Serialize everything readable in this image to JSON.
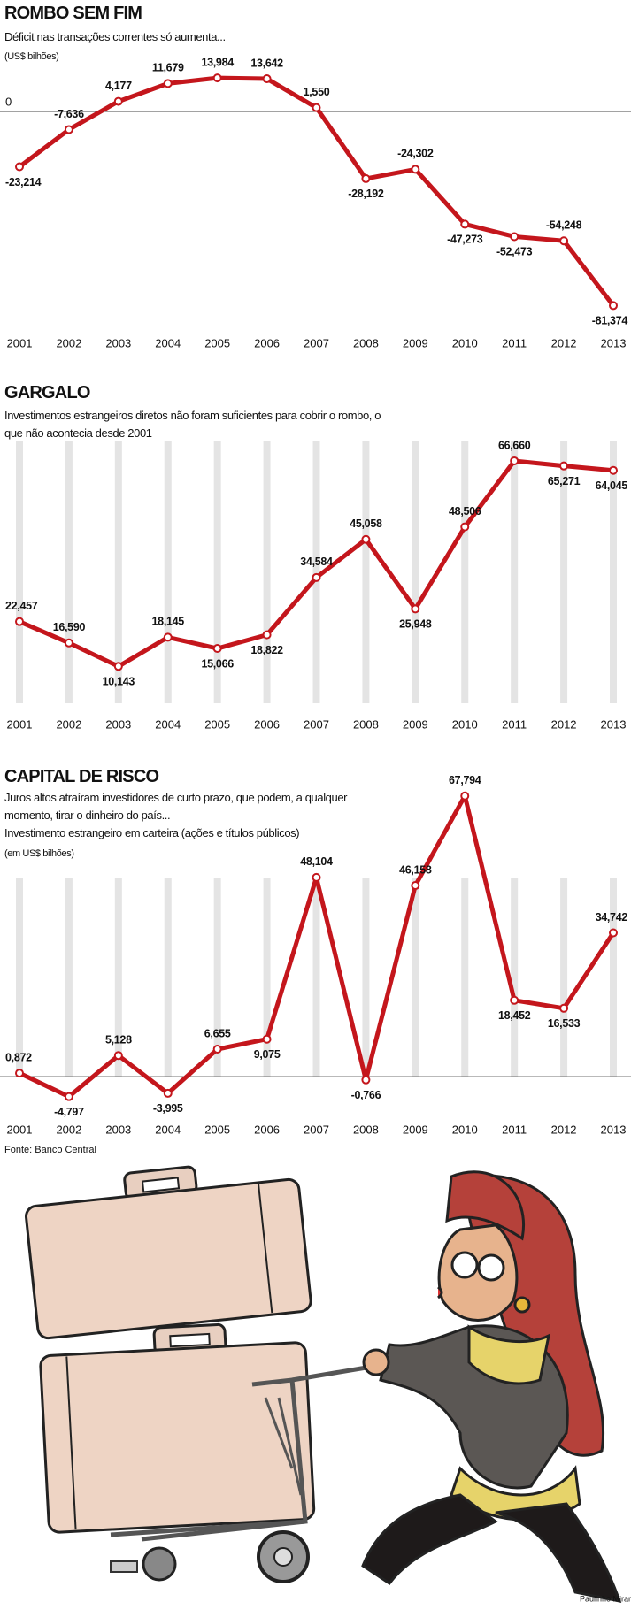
{
  "chart_data": [
    {
      "type": "line",
      "title": "ROMBO SEM FIM",
      "subtitle": "Déficit nas transações correntes só aumenta...",
      "unit": "(US$ bilhões)",
      "categories": [
        "2001",
        "2002",
        "2003",
        "2004",
        "2005",
        "2006",
        "2007",
        "2008",
        "2009",
        "2010",
        "2011",
        "2012",
        "2013"
      ],
      "values": [
        -23.214,
        -7.636,
        4.177,
        11.679,
        13.984,
        13.642,
        1.55,
        -28.192,
        -24.302,
        -47.273,
        -52.473,
        -54.248,
        -81.374
      ],
      "value_labels": [
        "-23,214",
        "-7,636",
        "4,177",
        "11,679",
        "13,984",
        "13,642",
        "1,550",
        "-28,192",
        "-24,302",
        "-47,273",
        "-52,473",
        "-54,248",
        "-81,374"
      ],
      "color": "#c4161c",
      "ylim": [
        -89,
        17
      ],
      "yticks": [
        0
      ],
      "zero_line": true,
      "column_guides": false
    },
    {
      "type": "line",
      "title": "GARGALO",
      "subtitle": "Investimentos estrangeiros diretos não foram suficientes para cobrir o rombo, o que não acontecia desde 2001",
      "categories": [
        "2001",
        "2002",
        "2003",
        "2004",
        "2005",
        "2006",
        "2007",
        "2008",
        "2009",
        "2010",
        "2011",
        "2012",
        "2013"
      ],
      "values": [
        22.457,
        16.59,
        10.143,
        18.145,
        15.066,
        18.822,
        34.584,
        45.058,
        25.948,
        48.506,
        66.66,
        65.271,
        64.045
      ],
      "value_labels": [
        "22,457",
        "16,590",
        "10,143",
        "18,145",
        "15,066",
        "18,822",
        "34,584",
        "45,058",
        "25,948",
        "48,506",
        "66,660",
        "65,271",
        "64,045"
      ],
      "color": "#c4161c",
      "ylim": [
        0,
        72
      ],
      "zero_line": false,
      "column_guides": true
    },
    {
      "type": "line",
      "title": "CAPITAL DE RISCO",
      "subtitle": "Juros altos atraíram investidores de curto prazo, que podem, a qualquer momento, tirar o dinheiro do país...",
      "note": "Investimento estrangeiro em carteira (ações e títulos públicos)",
      "unit": "(em US$ bilhões)",
      "categories": [
        "2001",
        "2002",
        "2003",
        "2004",
        "2005",
        "2006",
        "2007",
        "2008",
        "2009",
        "2010",
        "2011",
        "2012",
        "2013"
      ],
      "values": [
        0.872,
        -4.797,
        5.128,
        -3.995,
        6.655,
        9.075,
        48.104,
        -0.766,
        46.158,
        67.794,
        18.452,
        16.533,
        34.742
      ],
      "value_labels": [
        "0,872",
        "-4,797",
        "5,128",
        "-3,995",
        "6,655",
        "9,075",
        "48,104",
        "-0,766",
        "46,158",
        "67,794",
        "18,452",
        "16,533",
        "34,742"
      ],
      "color": "#c4161c",
      "ylim": [
        -7,
        72
      ],
      "zero_line": true,
      "column_guides": true
    }
  ],
  "footer": {
    "source": "Fonte: Banco Central",
    "credit": "Paulinho Miranda"
  }
}
